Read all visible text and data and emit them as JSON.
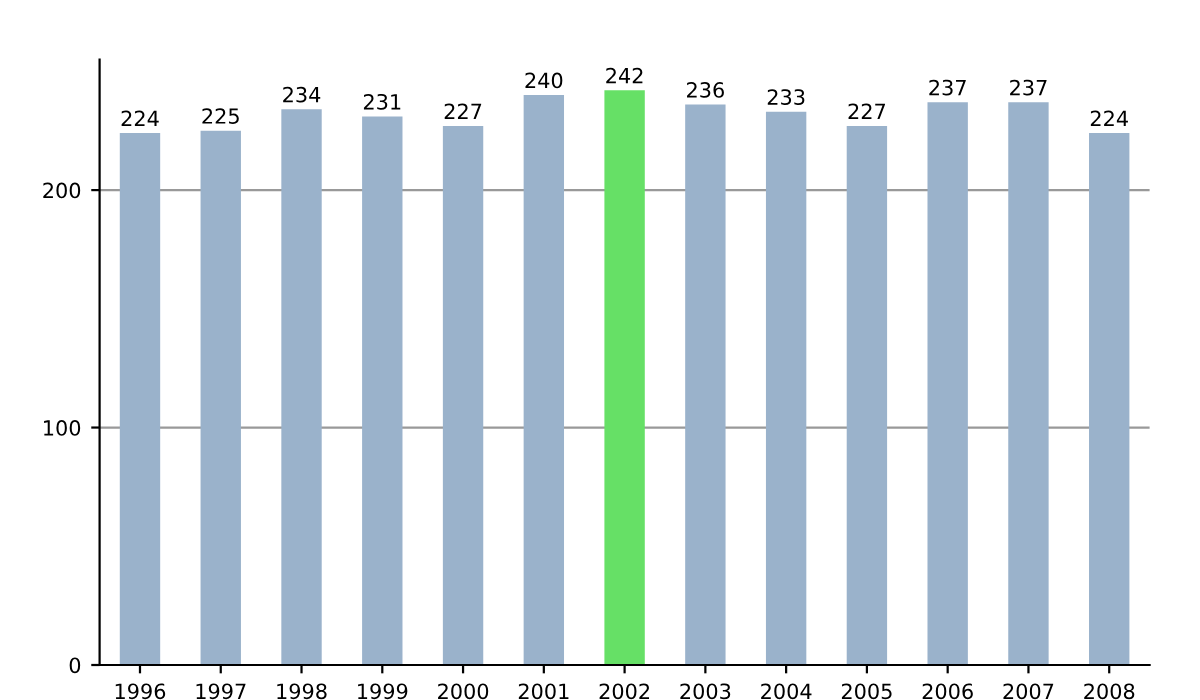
{
  "chart_data": {
    "type": "bar",
    "categories": [
      "1996",
      "1997",
      "1998",
      "1999",
      "2000",
      "2001",
      "2002",
      "2003",
      "2004",
      "2005",
      "2006",
      "2007",
      "2008"
    ],
    "values": [
      224,
      225,
      234,
      231,
      227,
      240,
      242,
      236,
      233,
      227,
      237,
      237,
      224
    ],
    "colors": [
      "#9ab2cb",
      "#9ab2cb",
      "#9ab2cb",
      "#9ab2cb",
      "#9ab2cb",
      "#9ab2cb",
      "#66e066",
      "#9ab2cb",
      "#9ab2cb",
      "#9ab2cb",
      "#9ab2cb",
      "#9ab2cb",
      "#9ab2cb"
    ],
    "ylim": [
      0,
      255
    ],
    "yticks": [
      0,
      100,
      200
    ],
    "grid": "y",
    "data_labels": true
  }
}
